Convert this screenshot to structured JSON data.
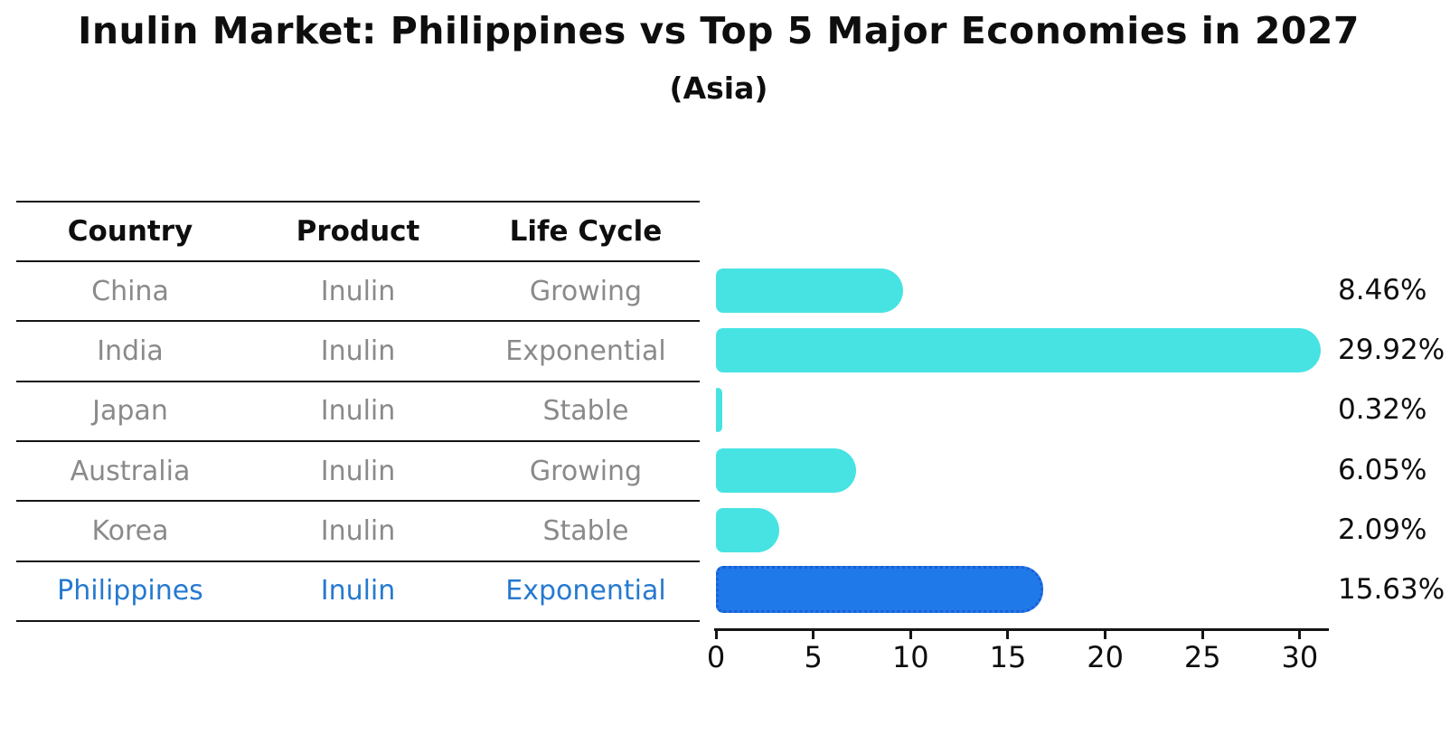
{
  "title": "Inulin Market: Philippines vs Top 5 Major Economies in 2027",
  "subtitle": "(Asia)",
  "colors": {
    "bar_default": "#47e3e3",
    "bar_highlight": "#2079e8",
    "bar_highlight_border": "#1a5fd4",
    "highlight_text": "#2779cf",
    "muted_text": "#8a8a8a",
    "text": "#0e0e0e"
  },
  "table": {
    "headers": [
      "Country",
      "Product",
      "Life Cycle"
    ],
    "rows": [
      {
        "country": "China",
        "product": "Inulin",
        "life_cycle": "Growing",
        "highlight": false
      },
      {
        "country": "India",
        "product": "Inulin",
        "life_cycle": "Exponential",
        "highlight": false
      },
      {
        "country": "Japan",
        "product": "Inulin",
        "life_cycle": "Stable",
        "highlight": false
      },
      {
        "country": "Australia",
        "product": "Inulin",
        "life_cycle": "Growing",
        "highlight": false
      },
      {
        "country": "Korea",
        "product": "Inulin",
        "life_cycle": "Stable",
        "highlight": false
      },
      {
        "country": "Philippines",
        "product": "Inulin",
        "life_cycle": "Exponential",
        "highlight": true
      }
    ]
  },
  "chart_data": {
    "type": "bar",
    "orientation": "horizontal",
    "title": "Inulin Market: Philippines vs Top 5 Major Economies in 2027",
    "subtitle": "(Asia)",
    "categories": [
      "China",
      "India",
      "Japan",
      "Australia",
      "Korea",
      "Philippines"
    ],
    "values": [
      8.46,
      29.92,
      0.32,
      6.05,
      2.09,
      15.63
    ],
    "value_labels": [
      "8.46%",
      "29.92%",
      "0.32%",
      "6.05%",
      "2.09%",
      "15.63%"
    ],
    "unit": "%",
    "highlight_index": 5,
    "x_ticks": [
      0,
      5,
      10,
      15,
      20,
      25,
      30
    ],
    "xlim": [
      0,
      31.5
    ],
    "grid": false,
    "legend": false
  }
}
